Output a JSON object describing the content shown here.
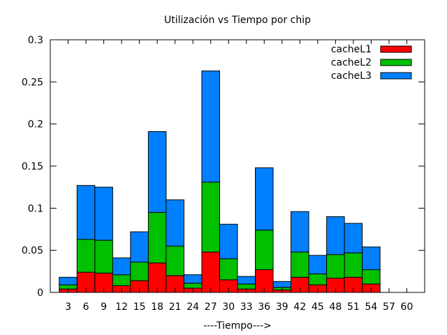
{
  "chart_data": {
    "type": "bar",
    "stacked": true,
    "title": "Utilización vs Tiempo por chip",
    "xlabel": "----Tiempo--->",
    "ylabel": "",
    "ylim": [
      0,
      0.3
    ],
    "yticks": [
      "0",
      "0.05",
      "0.1",
      "0.15",
      "0.2",
      "0.25",
      "0.3"
    ],
    "categories": [
      "3",
      "6",
      "9",
      "12",
      "15",
      "18",
      "21",
      "24",
      "27",
      "30",
      "33",
      "36",
      "39",
      "42",
      "45",
      "48",
      "51",
      "54",
      "57",
      "60"
    ],
    "legend_position": "top-right",
    "grid": false,
    "series": [
      {
        "name": "cacheL1",
        "color": "#ff0000",
        "values": [
          0.004,
          0.024,
          0.023,
          0.008,
          0.014,
          0.035,
          0.02,
          0.005,
          0.048,
          0.015,
          0.004,
          0.027,
          0.003,
          0.018,
          0.009,
          0.017,
          0.018,
          0.01,
          0,
          0
        ]
      },
      {
        "name": "cacheL2",
        "color": "#00c000",
        "values": [
          0.005,
          0.039,
          0.039,
          0.013,
          0.022,
          0.06,
          0.035,
          0.006,
          0.083,
          0.025,
          0.006,
          0.047,
          0.003,
          0.03,
          0.013,
          0.028,
          0.029,
          0.017,
          0,
          0
        ]
      },
      {
        "name": "cacheL3",
        "color": "#0080ff",
        "values": [
          0.009,
          0.064,
          0.063,
          0.02,
          0.036,
          0.096,
          0.055,
          0.01,
          0.132,
          0.041,
          0.009,
          0.074,
          0.007,
          0.048,
          0.022,
          0.045,
          0.035,
          0.027,
          0,
          0
        ]
      }
    ]
  }
}
